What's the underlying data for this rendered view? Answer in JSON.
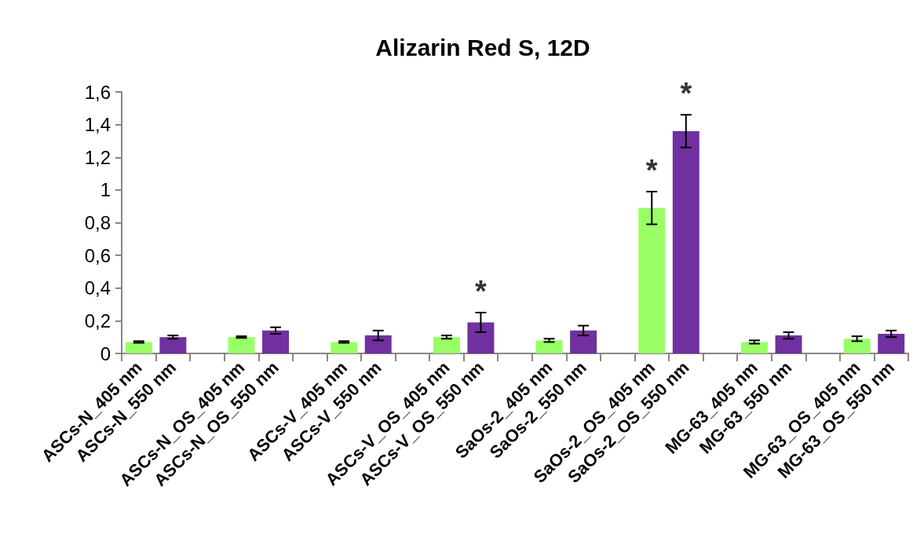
{
  "chart_data": {
    "type": "bar",
    "title": "Alizarin Red S, 12D",
    "categories": [
      "ASCs-N_405 nm",
      "ASCs-N_550 nm",
      null,
      "ASCs-N_OS_405 nm",
      "ASCs-N_OS_550 nm",
      null,
      "ASCs-V_405 nm",
      "ASCs-V_550 nm",
      null,
      "ASCs-V_OS_405 nm",
      "ASCs-V_OS_550 nm",
      null,
      "SaOs-2_405 nm",
      "SaOs-2_550 nm",
      null,
      "SaOs-2_OS_405 nm",
      "SaOs-2_OS_550 nm",
      null,
      "MG-63_405 nm",
      "MG-63_550 nm",
      null,
      "MG-63_OS_405 nm",
      "MG-63_OS_550 nm"
    ],
    "values": [
      0.07,
      0.1,
      null,
      0.1,
      0.14,
      null,
      0.07,
      0.11,
      null,
      0.1,
      0.19,
      null,
      0.08,
      0.14,
      null,
      0.89,
      1.36,
      null,
      0.07,
      0.11,
      null,
      0.09,
      0.12
    ],
    "errors": [
      0.005,
      0.01,
      null,
      0.005,
      0.02,
      null,
      0.005,
      0.03,
      null,
      0.01,
      0.06,
      null,
      0.01,
      0.03,
      null,
      0.1,
      0.1,
      null,
      0.01,
      0.02,
      null,
      0.015,
      0.02
    ],
    "colors": [
      "#99ff66",
      "#7030a0",
      null,
      "#99ff66",
      "#7030a0",
      null,
      "#99ff66",
      "#7030a0",
      null,
      "#99ff66",
      "#7030a0",
      null,
      "#99ff66",
      "#7030a0",
      null,
      "#99ff66",
      "#7030a0",
      null,
      "#99ff66",
      "#7030a0",
      null,
      "#99ff66",
      "#7030a0"
    ],
    "ylim": [
      0,
      1.6
    ],
    "yticks": [
      0,
      {
        "value": 0.2,
        "label": "0,2"
      },
      {
        "value": 0.4,
        "label": "0,4"
      },
      {
        "value": 0.6,
        "label": "0,6"
      },
      {
        "value": 0.8,
        "label": "0,8"
      },
      1,
      {
        "value": 1.2,
        "label": "1,2"
      },
      {
        "value": 1.4,
        "label": "1,4"
      },
      {
        "value": 1.6,
        "label": "1,6"
      }
    ],
    "annotations": [
      {
        "text": "*",
        "x": "ASCs-V_OS_550 nm",
        "y": 0.19
      },
      {
        "text": "*",
        "x": "SaOs-2_OS_405 nm",
        "y": 0.89
      },
      {
        "text": "*",
        "x": "SaOs-2_OS_550 nm",
        "y": 1.36
      }
    ],
    "grid": false
  }
}
